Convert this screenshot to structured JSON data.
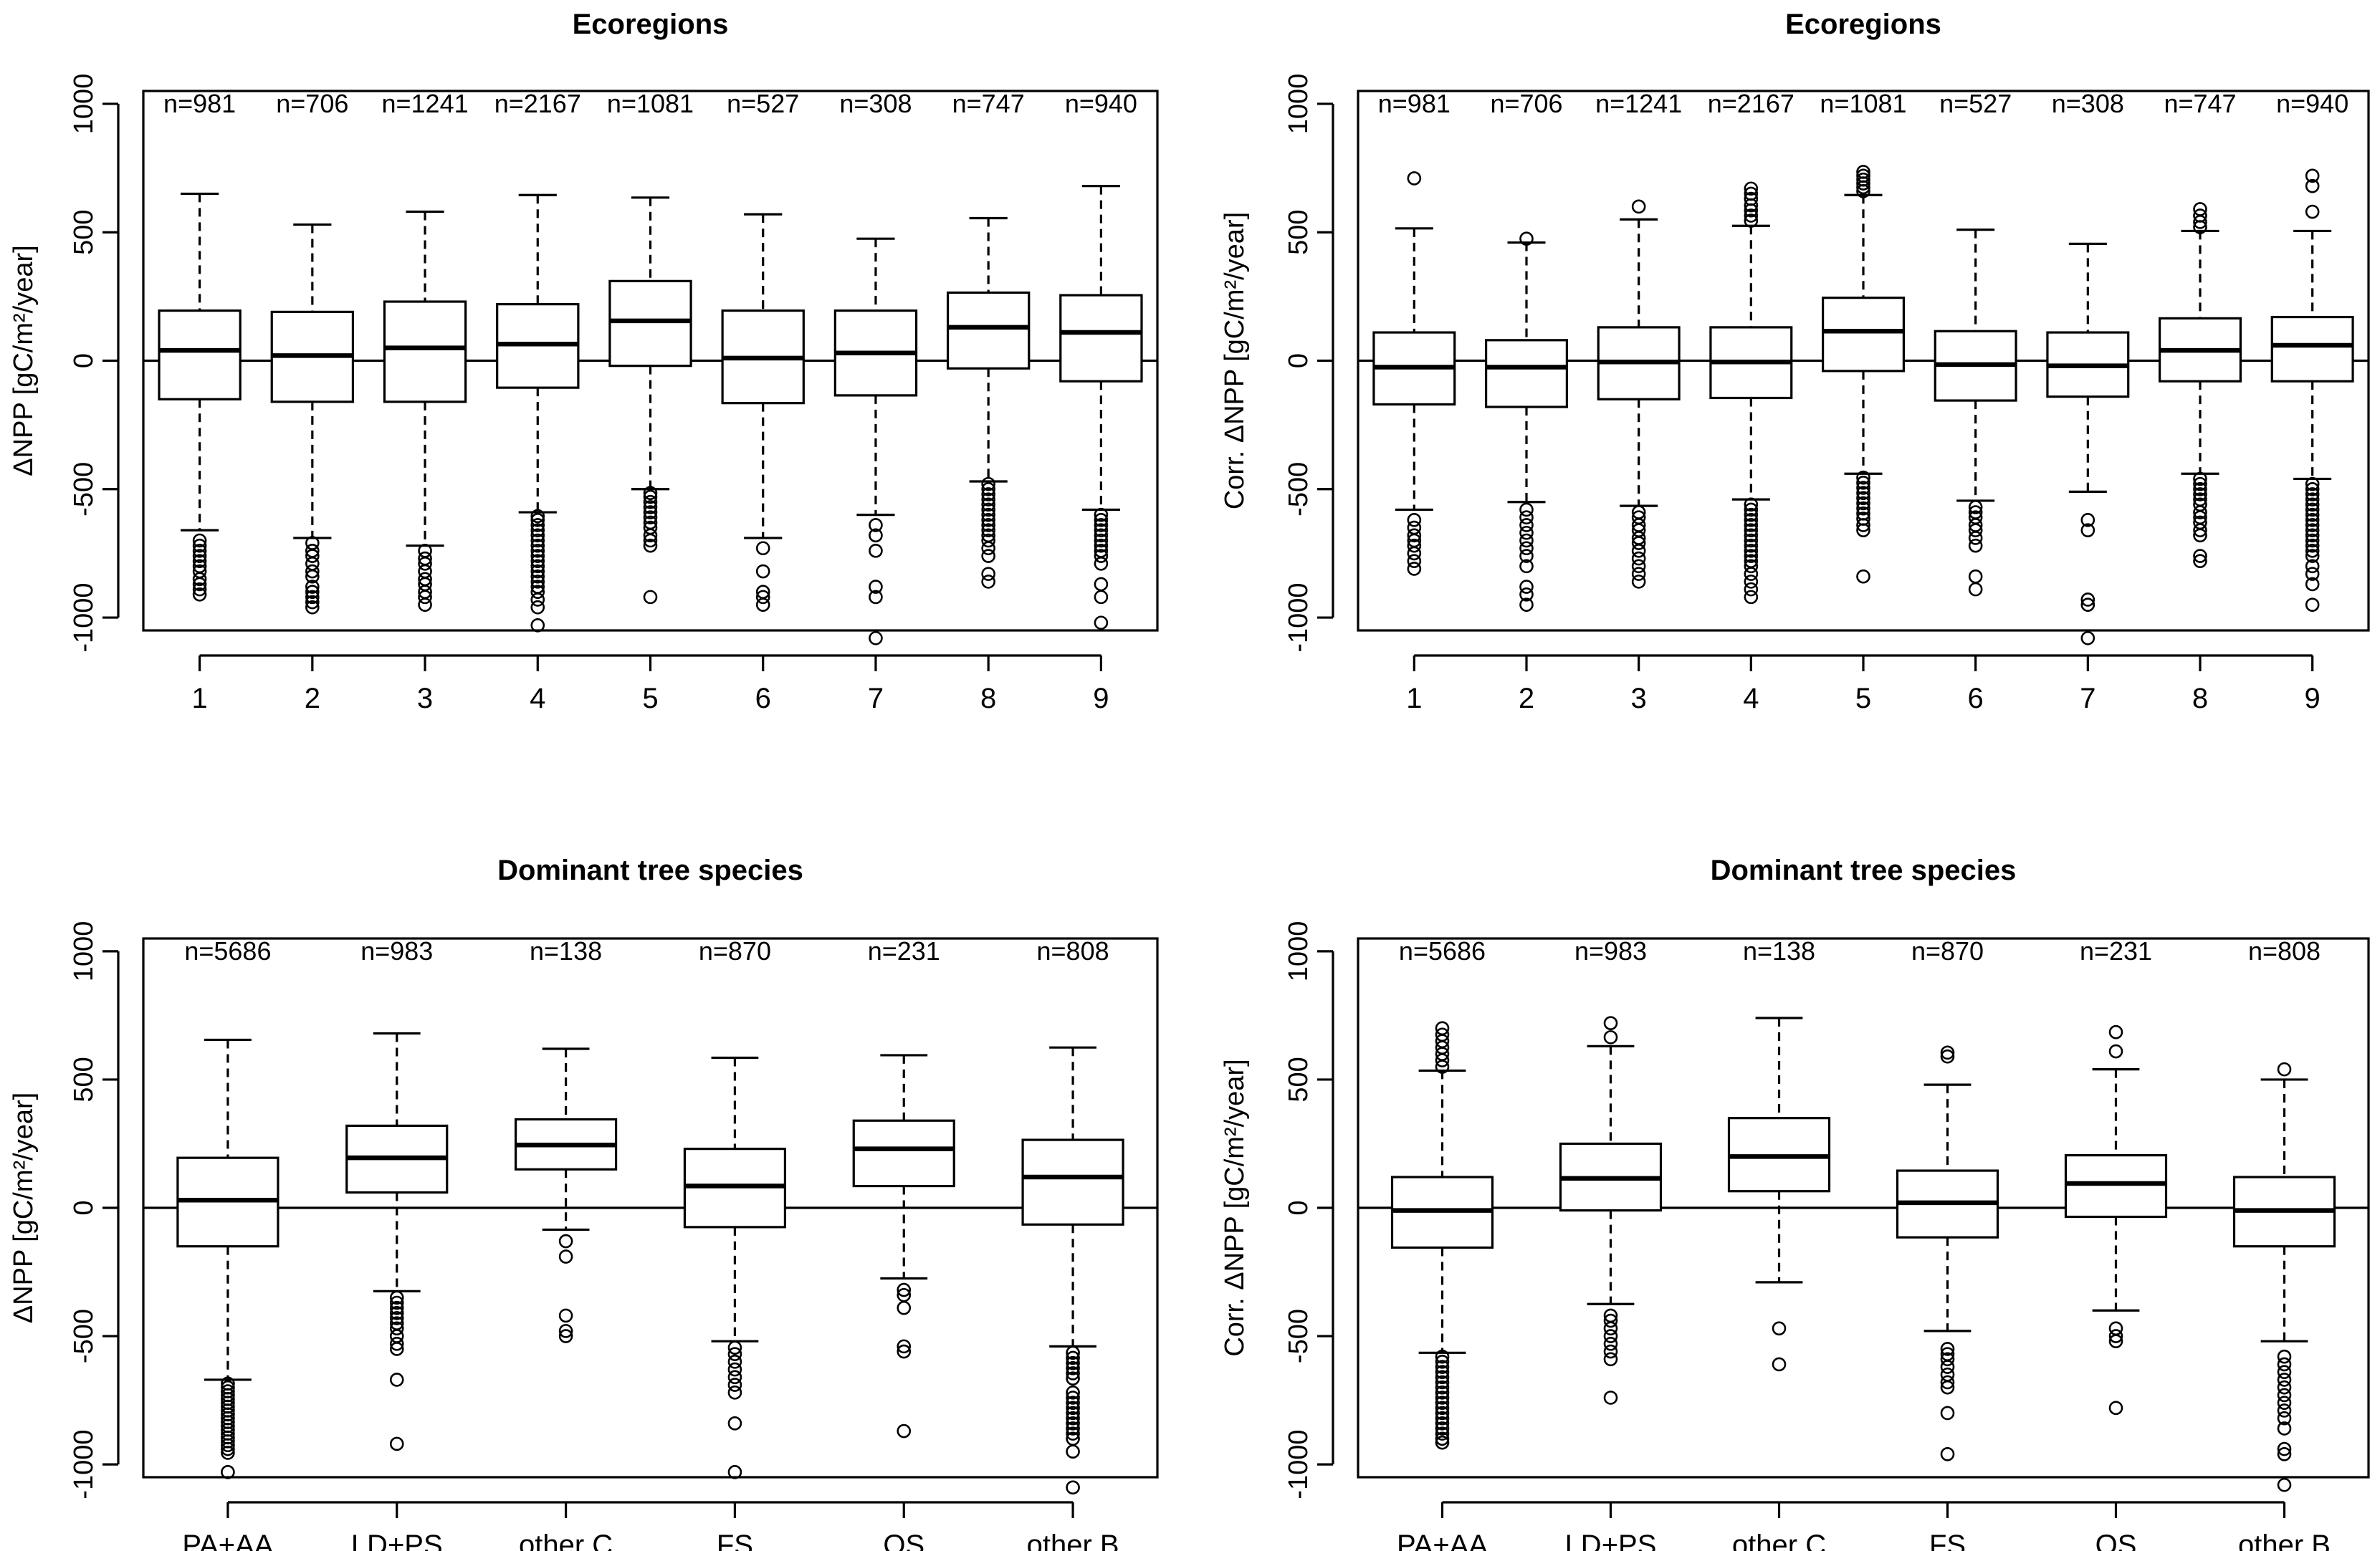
{
  "chart_data": [
    {
      "type": "boxplot",
      "title": "Ecoregions",
      "ylabel": "ΔNPP [gC/m²/year]",
      "xlabel": "",
      "ylim": [
        -1050,
        1050
      ],
      "yticks": [
        -1000,
        -500,
        0,
        500,
        1000
      ],
      "yticklabels": [
        "-1000",
        "-500",
        "0",
        "500",
        "1000"
      ],
      "hline": 0,
      "categories": [
        "1",
        "2",
        "3",
        "4",
        "5",
        "6",
        "7",
        "8",
        "9"
      ],
      "n_labels": [
        "n=981",
        "n=706",
        "n=1241",
        "n=2167",
        "n=1081",
        "n=527",
        "n=308",
        "n=747",
        "n=940"
      ],
      "boxes": [
        {
          "whisker_low": -660,
          "q1": -150,
          "median": 40,
          "q3": 195,
          "whisker_high": 650,
          "outliers": [
            -700,
            -720,
            -740,
            -760,
            -780,
            -800,
            -820,
            -850,
            -870,
            -890,
            -910
          ]
        },
        {
          "whisker_low": -690,
          "q1": -160,
          "median": 20,
          "q3": 190,
          "whisker_high": 530,
          "outliers": [
            -710,
            -740,
            -760,
            -790,
            -820,
            -840,
            -880,
            -900,
            -920,
            -940,
            -960
          ]
        },
        {
          "whisker_low": -720,
          "q1": -160,
          "median": 50,
          "q3": 230,
          "whisker_high": 580,
          "outliers": [
            -740,
            -770,
            -790,
            -820,
            -850,
            -870,
            -900,
            -920,
            -950
          ]
        },
        {
          "whisker_low": -590,
          "q1": -105,
          "median": 65,
          "q3": 220,
          "whisker_high": 645,
          "outliers": [
            -605,
            -620,
            -640,
            -660,
            -680,
            -700,
            -720,
            -740,
            -760,
            -780,
            -800,
            -820,
            -840,
            -860,
            -880,
            -900,
            -930,
            -960,
            -1030
          ]
        },
        {
          "whisker_low": -500,
          "q1": -20,
          "median": 155,
          "q3": 310,
          "whisker_high": 635,
          "outliers": [
            -515,
            -530,
            -550,
            -570,
            -590,
            -610,
            -630,
            -650,
            -680,
            -700,
            -720,
            -920
          ]
        },
        {
          "whisker_low": -690,
          "q1": -165,
          "median": 10,
          "q3": 195,
          "whisker_high": 570,
          "outliers": [
            -730,
            -820,
            -900,
            -920,
            -950
          ]
        },
        {
          "whisker_low": -600,
          "q1": -135,
          "median": 30,
          "q3": 195,
          "whisker_high": 475,
          "outliers": [
            -640,
            -680,
            -740,
            -880,
            -920,
            -1080
          ]
        },
        {
          "whisker_low": -470,
          "q1": -30,
          "median": 130,
          "q3": 265,
          "whisker_high": 555,
          "outliers": [
            -480,
            -500,
            -520,
            -540,
            -560,
            -580,
            -600,
            -620,
            -640,
            -660,
            -680,
            -700,
            -730,
            -760,
            -830,
            -860
          ]
        },
        {
          "whisker_low": -580,
          "q1": -80,
          "median": 110,
          "q3": 255,
          "whisker_high": 680,
          "outliers": [
            -600,
            -620,
            -640,
            -660,
            -680,
            -700,
            -720,
            -740,
            -760,
            -790,
            -870,
            -920,
            -1020
          ]
        }
      ]
    },
    {
      "type": "boxplot",
      "title": "Ecoregions",
      "ylabel": "Corr. ΔNPP [gC/m²/year]",
      "xlabel": "",
      "ylim": [
        -1050,
        1050
      ],
      "yticks": [
        -1000,
        -500,
        0,
        500,
        1000
      ],
      "yticklabels": [
        "-1000",
        "-500",
        "0",
        "500",
        "1000"
      ],
      "hline": 0,
      "categories": [
        "1",
        "2",
        "3",
        "4",
        "5",
        "6",
        "7",
        "8",
        "9"
      ],
      "n_labels": [
        "n=981",
        "n=706",
        "n=1241",
        "n=2167",
        "n=1081",
        "n=527",
        "n=308",
        "n=747",
        "n=940"
      ],
      "boxes": [
        {
          "whisker_low": -580,
          "q1": -170,
          "median": -25,
          "q3": 110,
          "whisker_high": 515,
          "outliers": [
            710,
            -620,
            -650,
            -680,
            -700,
            -720,
            -750,
            -780,
            -810
          ]
        },
        {
          "whisker_low": -550,
          "q1": -180,
          "median": -25,
          "q3": 80,
          "whisker_high": 460,
          "outliers": [
            475,
            -580,
            -610,
            -640,
            -670,
            -700,
            -730,
            -760,
            -800,
            -880,
            -910,
            -950
          ]
        },
        {
          "whisker_low": -565,
          "q1": -150,
          "median": -5,
          "q3": 130,
          "whisker_high": 550,
          "outliers": [
            600,
            -590,
            -610,
            -640,
            -660,
            -690,
            -710,
            -740,
            -770,
            -800,
            -830,
            -860
          ]
        },
        {
          "whisker_low": -540,
          "q1": -145,
          "median": -5,
          "q3": 130,
          "whisker_high": 525,
          "outliers": [
            545,
            565,
            585,
            605,
            630,
            650,
            670,
            -560,
            -580,
            -600,
            -620,
            -640,
            -660,
            -680,
            -700,
            -720,
            -740,
            -760,
            -780,
            -800,
            -830,
            -860,
            -890,
            -920
          ]
        },
        {
          "whisker_low": -440,
          "q1": -40,
          "median": 115,
          "q3": 245,
          "whisker_high": 645,
          "outliers": [
            660,
            675,
            690,
            705,
            720,
            735,
            -455,
            -475,
            -495,
            -515,
            -535,
            -555,
            -575,
            -595,
            -615,
            -640,
            -660,
            -840
          ]
        },
        {
          "whisker_low": -545,
          "q1": -155,
          "median": -15,
          "q3": 115,
          "whisker_high": 510,
          "outliers": [
            -570,
            -590,
            -610,
            -640,
            -660,
            -690,
            -720,
            -840,
            -890
          ]
        },
        {
          "whisker_low": -510,
          "q1": -140,
          "median": -20,
          "q3": 110,
          "whisker_high": 455,
          "outliers": [
            -620,
            -660,
            -930,
            -950,
            -1080
          ]
        },
        {
          "whisker_low": -440,
          "q1": -80,
          "median": 40,
          "q3": 165,
          "whisker_high": 505,
          "outliers": [
            520,
            540,
            565,
            590,
            -460,
            -480,
            -500,
            -520,
            -540,
            -560,
            -590,
            -610,
            -630,
            -660,
            -680,
            -760,
            -780
          ]
        },
        {
          "whisker_low": -460,
          "q1": -80,
          "median": 60,
          "q3": 170,
          "whisker_high": 505,
          "outliers": [
            580,
            680,
            720,
            -480,
            -500,
            -520,
            -540,
            -560,
            -580,
            -600,
            -620,
            -640,
            -660,
            -680,
            -700,
            -720,
            -740,
            -760,
            -800,
            -830,
            -870,
            -950
          ]
        }
      ]
    },
    {
      "type": "boxplot",
      "title": "Dominant tree species",
      "ylabel": "ΔNPP [gC/m²/year]",
      "xlabel": "",
      "ylim": [
        -1050,
        1050
      ],
      "yticks": [
        -1000,
        -500,
        0,
        500,
        1000
      ],
      "yticklabels": [
        "-1000",
        "-500",
        "0",
        "500",
        "1000"
      ],
      "hline": 0,
      "categories": [
        "PA+AA",
        "LD+PS",
        "other C",
        "FS",
        "QS",
        "other B"
      ],
      "n_labels": [
        "n=5686",
        "n=983",
        "n=138",
        "n=870",
        "n=231",
        "n=808"
      ],
      "boxes": [
        {
          "whisker_low": -670,
          "q1": -150,
          "median": 30,
          "q3": 195,
          "whisker_high": 655,
          "outliers": [
            -685,
            -700,
            -715,
            -730,
            -745,
            -760,
            -775,
            -790,
            -805,
            -820,
            -835,
            -850,
            -865,
            -880,
            -895,
            -910,
            -925,
            -940,
            -955,
            -1030
          ]
        },
        {
          "whisker_low": -325,
          "q1": 60,
          "median": 195,
          "q3": 320,
          "whisker_high": 680,
          "outliers": [
            -350,
            -370,
            -390,
            -410,
            -430,
            -450,
            -470,
            -500,
            -530,
            -550,
            -670,
            -920
          ]
        },
        {
          "whisker_low": -85,
          "q1": 150,
          "median": 245,
          "q3": 345,
          "whisker_high": 620,
          "outliers": [
            -130,
            -190,
            -420,
            -480,
            -500
          ]
        },
        {
          "whisker_low": -520,
          "q1": -75,
          "median": 85,
          "q3": 230,
          "whisker_high": 585,
          "outliers": [
            -545,
            -570,
            -600,
            -630,
            -660,
            -690,
            -720,
            -840,
            -1030
          ]
        },
        {
          "whisker_low": -275,
          "q1": 85,
          "median": 230,
          "q3": 340,
          "whisker_high": 595,
          "outliers": [
            -320,
            -340,
            -390,
            -540,
            -560,
            -870
          ]
        },
        {
          "whisker_low": -540,
          "q1": -65,
          "median": 120,
          "q3": 265,
          "whisker_high": 625,
          "outliers": [
            -565,
            -585,
            -605,
            -625,
            -645,
            -665,
            -720,
            -740,
            -760,
            -780,
            -800,
            -820,
            -840,
            -860,
            -880,
            -900,
            -950,
            -1090
          ]
        }
      ]
    },
    {
      "type": "boxplot",
      "title": "Dominant tree species",
      "ylabel": "Corr. ΔNPP [gC/m²/year]",
      "xlabel": "",
      "ylim": [
        -1050,
        1050
      ],
      "yticks": [
        -1000,
        -500,
        0,
        500,
        1000
      ],
      "yticklabels": [
        "-1000",
        "-500",
        "0",
        "500",
        "1000"
      ],
      "hline": 0,
      "categories": [
        "PA+AA",
        "LD+PS",
        "other C",
        "FS",
        "QS",
        "other B"
      ],
      "n_labels": [
        "n=5686",
        "n=983",
        "n=138",
        "n=870",
        "n=231",
        "n=808"
      ],
      "boxes": [
        {
          "whisker_low": -565,
          "q1": -155,
          "median": -10,
          "q3": 120,
          "whisker_high": 535,
          "outliers": [
            550,
            575,
            600,
            625,
            650,
            675,
            700,
            -580,
            -600,
            -620,
            -640,
            -660,
            -680,
            -700,
            -720,
            -740,
            -760,
            -780,
            -800,
            -820,
            -840,
            -860,
            -880,
            -900,
            -915
          ]
        },
        {
          "whisker_low": -375,
          "q1": -10,
          "median": 115,
          "q3": 250,
          "whisker_high": 630,
          "outliers": [
            665,
            720,
            -420,
            -440,
            -470,
            -500,
            -530,
            -560,
            -590,
            -740
          ]
        },
        {
          "whisker_low": -290,
          "q1": 65,
          "median": 200,
          "q3": 350,
          "whisker_high": 740,
          "outliers": [
            -470,
            -610
          ]
        },
        {
          "whisker_low": -480,
          "q1": -115,
          "median": 20,
          "q3": 145,
          "whisker_high": 480,
          "outliers": [
            590,
            605,
            -550,
            -570,
            -590,
            -620,
            -650,
            -680,
            -700,
            -800,
            -960
          ]
        },
        {
          "whisker_low": -400,
          "q1": -35,
          "median": 95,
          "q3": 205,
          "whisker_high": 540,
          "outliers": [
            610,
            685,
            -470,
            -500,
            -520,
            -780
          ]
        },
        {
          "whisker_low": -520,
          "q1": -150,
          "median": -10,
          "q3": 120,
          "whisker_high": 500,
          "outliers": [
            540,
            -580,
            -610,
            -640,
            -670,
            -700,
            -730,
            -760,
            -790,
            -820,
            -860,
            -940,
            -960,
            -1080
          ]
        }
      ]
    }
  ]
}
